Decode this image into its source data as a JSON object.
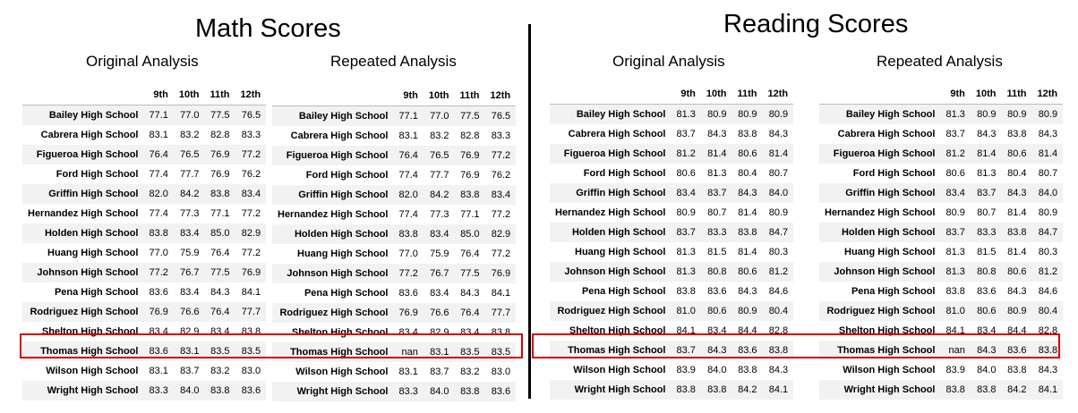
{
  "sections": {
    "math": {
      "title": "Math Scores"
    },
    "reading": {
      "title": "Reading Scores"
    }
  },
  "subtitles": {
    "original": "Original Analysis",
    "repeated": "Repeated Analysis"
  },
  "columns": [
    "9th",
    "10th",
    "11th",
    "12th"
  ],
  "schools": [
    "Bailey High School",
    "Cabrera High School",
    "Figueroa High School",
    "Ford High School",
    "Griffin High School",
    "Hernandez High School",
    "Holden High School",
    "Huang High School",
    "Johnson High School",
    "Pena High School",
    "Rodriguez High School",
    "Shelton High School",
    "Thomas High School",
    "Wilson High School",
    "Wright High School"
  ],
  "tables": {
    "math_original": [
      [
        "77.1",
        "77.0",
        "77.5",
        "76.5"
      ],
      [
        "83.1",
        "83.2",
        "82.8",
        "83.3"
      ],
      [
        "76.4",
        "76.5",
        "76.9",
        "77.2"
      ],
      [
        "77.4",
        "77.7",
        "76.9",
        "76.2"
      ],
      [
        "82.0",
        "84.2",
        "83.8",
        "83.4"
      ],
      [
        "77.4",
        "77.3",
        "77.1",
        "77.2"
      ],
      [
        "83.8",
        "83.4",
        "85.0",
        "82.9"
      ],
      [
        "77.0",
        "75.9",
        "76.4",
        "77.2"
      ],
      [
        "77.2",
        "76.7",
        "77.5",
        "76.9"
      ],
      [
        "83.6",
        "83.4",
        "84.3",
        "84.1"
      ],
      [
        "76.9",
        "76.6",
        "76.4",
        "77.7"
      ],
      [
        "83.4",
        "82.9",
        "83.4",
        "83.8"
      ],
      [
        "83.6",
        "83.1",
        "83.5",
        "83.5"
      ],
      [
        "83.1",
        "83.7",
        "83.2",
        "83.0"
      ],
      [
        "83.3",
        "84.0",
        "83.8",
        "83.6"
      ]
    ],
    "math_repeated": [
      [
        "77.1",
        "77.0",
        "77.5",
        "76.5"
      ],
      [
        "83.1",
        "83.2",
        "82.8",
        "83.3"
      ],
      [
        "76.4",
        "76.5",
        "76.9",
        "77.2"
      ],
      [
        "77.4",
        "77.7",
        "76.9",
        "76.2"
      ],
      [
        "82.0",
        "84.2",
        "83.8",
        "83.4"
      ],
      [
        "77.4",
        "77.3",
        "77.1",
        "77.2"
      ],
      [
        "83.8",
        "83.4",
        "85.0",
        "82.9"
      ],
      [
        "77.0",
        "75.9",
        "76.4",
        "77.2"
      ],
      [
        "77.2",
        "76.7",
        "77.5",
        "76.9"
      ],
      [
        "83.6",
        "83.4",
        "84.3",
        "84.1"
      ],
      [
        "76.9",
        "76.6",
        "76.4",
        "77.7"
      ],
      [
        "83.4",
        "82.9",
        "83.4",
        "83.8"
      ],
      [
        "nan",
        "83.1",
        "83.5",
        "83.5"
      ],
      [
        "83.1",
        "83.7",
        "83.2",
        "83.0"
      ],
      [
        "83.3",
        "84.0",
        "83.8",
        "83.6"
      ]
    ],
    "reading_original": [
      [
        "81.3",
        "80.9",
        "80.9",
        "80.9"
      ],
      [
        "83.7",
        "84.3",
        "83.8",
        "84.3"
      ],
      [
        "81.2",
        "81.4",
        "80.6",
        "81.4"
      ],
      [
        "80.6",
        "81.3",
        "80.4",
        "80.7"
      ],
      [
        "83.4",
        "83.7",
        "84.3",
        "84.0"
      ],
      [
        "80.9",
        "80.7",
        "81.4",
        "80.9"
      ],
      [
        "83.7",
        "83.3",
        "83.8",
        "84.7"
      ],
      [
        "81.3",
        "81.5",
        "81.4",
        "80.3"
      ],
      [
        "81.3",
        "80.8",
        "80.6",
        "81.2"
      ],
      [
        "83.8",
        "83.6",
        "84.3",
        "84.6"
      ],
      [
        "81.0",
        "80.6",
        "80.9",
        "80.4"
      ],
      [
        "84.1",
        "83.4",
        "84.4",
        "82.8"
      ],
      [
        "83.7",
        "84.3",
        "83.6",
        "83.8"
      ],
      [
        "83.9",
        "84.0",
        "83.8",
        "84.3"
      ],
      [
        "83.8",
        "83.8",
        "84.2",
        "84.1"
      ]
    ],
    "reading_repeated": [
      [
        "81.3",
        "80.9",
        "80.9",
        "80.9"
      ],
      [
        "83.7",
        "84.3",
        "83.8",
        "84.3"
      ],
      [
        "81.2",
        "81.4",
        "80.6",
        "81.4"
      ],
      [
        "80.6",
        "81.3",
        "80.4",
        "80.7"
      ],
      [
        "83.4",
        "83.7",
        "84.3",
        "84.0"
      ],
      [
        "80.9",
        "80.7",
        "81.4",
        "80.9"
      ],
      [
        "83.7",
        "83.3",
        "83.8",
        "84.7"
      ],
      [
        "81.3",
        "81.5",
        "81.4",
        "80.3"
      ],
      [
        "81.3",
        "80.8",
        "80.6",
        "81.2"
      ],
      [
        "83.8",
        "83.6",
        "84.3",
        "84.6"
      ],
      [
        "81.0",
        "80.6",
        "80.9",
        "80.4"
      ],
      [
        "84.1",
        "83.4",
        "84.4",
        "82.8"
      ],
      [
        "nan",
        "84.3",
        "83.6",
        "83.8"
      ],
      [
        "83.9",
        "84.0",
        "83.8",
        "84.3"
      ],
      [
        "83.8",
        "83.8",
        "84.2",
        "84.1"
      ]
    ]
  },
  "highlight_color": "#d40000",
  "highlighted_row": "Thomas High School"
}
